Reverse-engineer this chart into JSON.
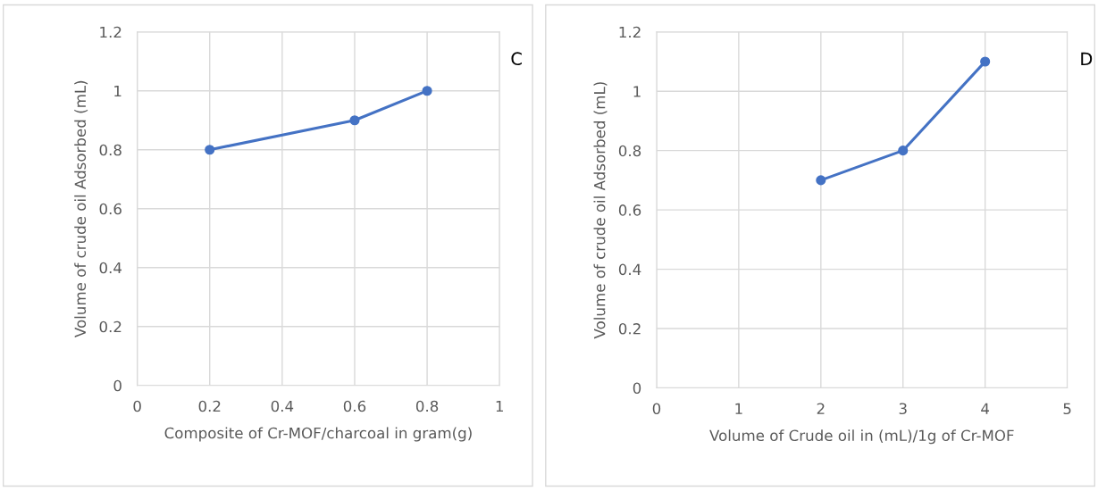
{
  "chart_data": [
    {
      "type": "line",
      "xlabel": "Composite of Cr-MOF/charcoal in gram(g)",
      "ylabel": "Volume of crude oil Adsorbed (mL)",
      "annotations": [
        "C"
      ],
      "series": [
        {
          "color": "#4472c4",
          "x": [
            0.2,
            0.6,
            0.8
          ],
          "values": [
            0.8,
            0.9,
            1.0
          ]
        }
      ],
      "xlim": [
        0,
        1
      ],
      "xticks": [
        0,
        0.2,
        0.4,
        0.6,
        0.8,
        1
      ],
      "ylim": [
        0,
        1.2
      ],
      "yticks": [
        0,
        0.2,
        0.4,
        0.6,
        0.8,
        1,
        1.2
      ],
      "grid": true,
      "marker": "circle",
      "line_style": "solid"
    },
    {
      "type": "line",
      "xlabel": "Volume of Crude oil in (mL)/1g of Cr-MOF",
      "ylabel": "Volume of crude oil Adsorbed (mL)",
      "annotations": [
        "D"
      ],
      "series": [
        {
          "color": "#4472c4",
          "x": [
            2,
            3,
            4
          ],
          "values": [
            0.7,
            0.8,
            1.1
          ]
        }
      ],
      "xlim": [
        0,
        5
      ],
      "xticks": [
        0,
        1,
        2,
        3,
        4,
        5
      ],
      "ylim": [
        0,
        1.2
      ],
      "yticks": [
        0,
        0.2,
        0.4,
        0.6,
        0.8,
        1,
        1.2
      ],
      "grid": true,
      "marker": "circle",
      "line_style": "solid"
    }
  ]
}
